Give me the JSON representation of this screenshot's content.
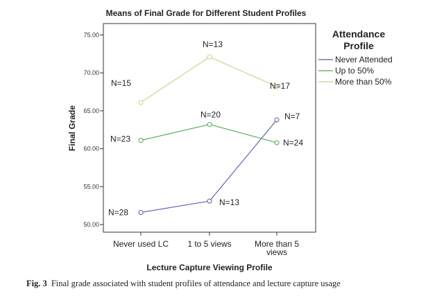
{
  "chart_data": {
    "type": "line",
    "title": "Means of Final Grade for Different Student Profiles",
    "xlabel": "Lecture Capture Viewing Profile",
    "ylabel": "Final Grade",
    "categories": [
      [
        "Never used LC"
      ],
      [
        "1 to 5 views"
      ],
      [
        "More than 5",
        "views"
      ]
    ],
    "ylim": [
      49.0,
      76.5
    ],
    "yticks": [
      50,
      55,
      60,
      65,
      70,
      75
    ],
    "ytick_labels": [
      "50.00",
      "55.00",
      "60.00",
      "65.00",
      "70.00",
      "75.00"
    ],
    "grid": false,
    "legend": {
      "title_lines": [
        "Attendance",
        "Profile"
      ],
      "placement": "right"
    },
    "series": [
      {
        "name": "Never Attended",
        "color": "#5a5aa8",
        "values": [
          51.6,
          53.1,
          63.8
        ],
        "labels": [
          "N=28",
          "N=13",
          "N=7"
        ]
      },
      {
        "name": "Up to 50%",
        "color": "#4caa4c",
        "values": [
          61.1,
          63.2,
          60.8
        ],
        "labels": [
          "N=23",
          "N=20",
          "N=24"
        ]
      },
      {
        "name": "More than 50%",
        "color": "#c9cf8c",
        "values": [
          66.1,
          72.1,
          68.2
        ],
        "labels": [
          "N=15",
          "N=13",
          "N=17"
        ]
      }
    ]
  },
  "caption": {
    "label": "Fig. 3",
    "text": "Final grade associated with student profiles of attendance and lecture capture usage"
  }
}
